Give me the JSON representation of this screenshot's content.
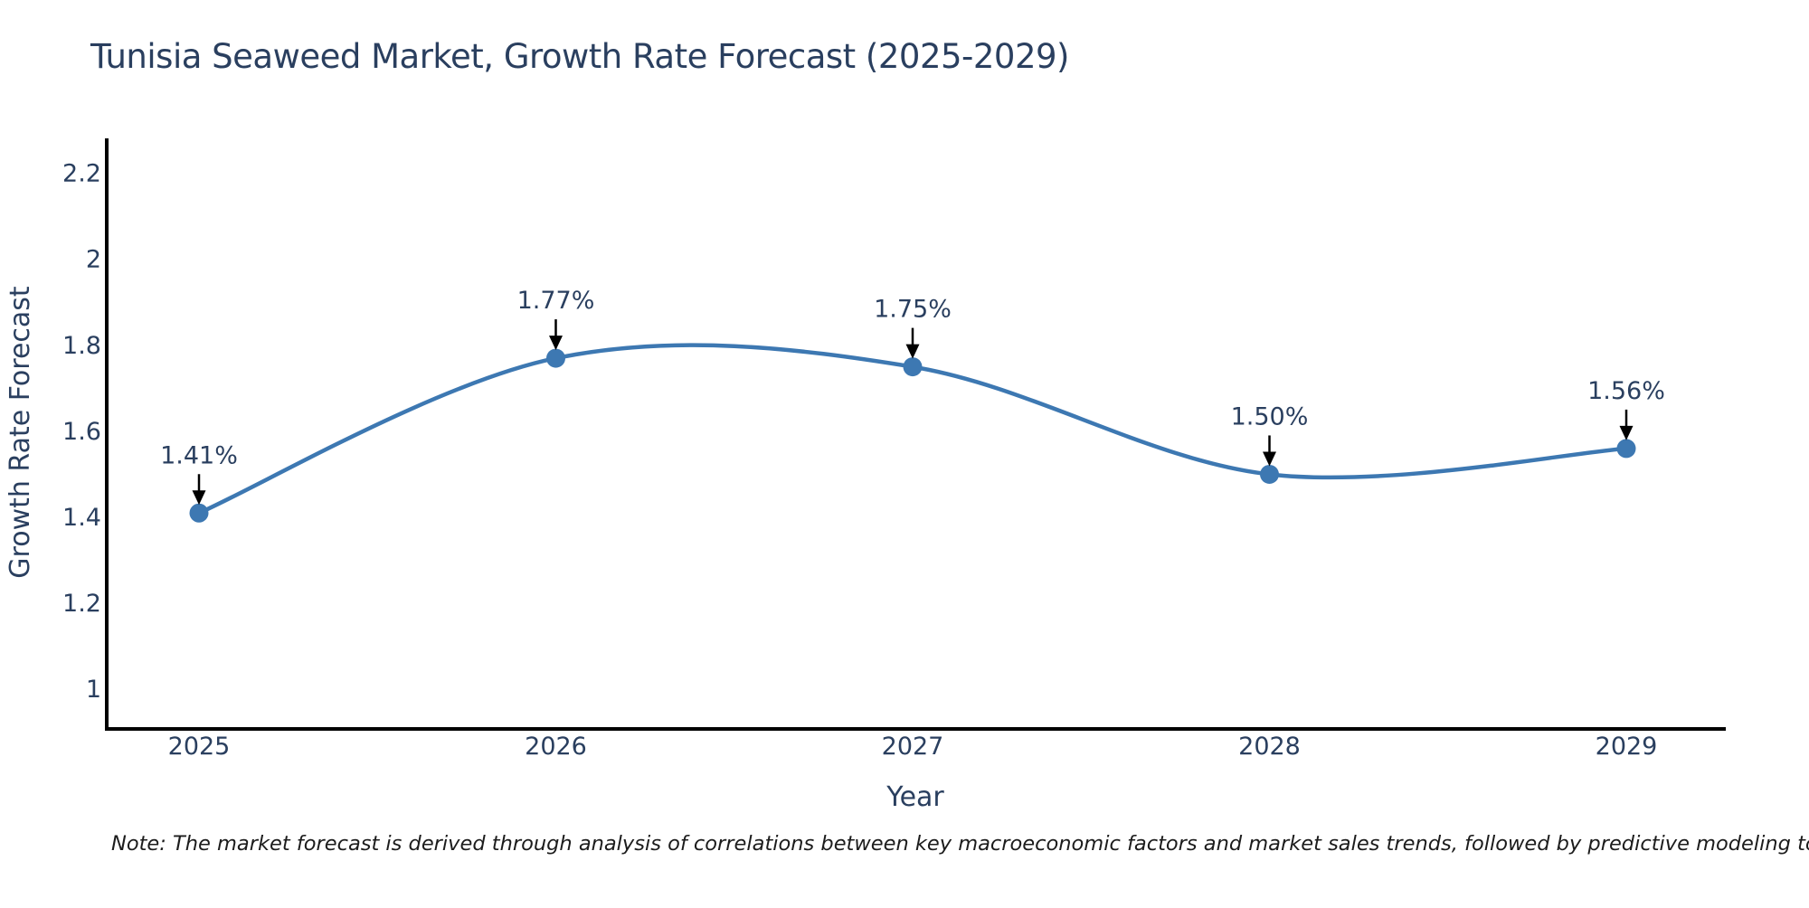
{
  "note": "Note: The market forecast is derived through analysis of correlations between key macroeconomic factors and market sales trends, followed by predictive modeling to project future sales",
  "chart_data": {
    "type": "line",
    "line_shape": "spline",
    "title": "Tunisia Seaweed Market, Growth Rate Forecast (2025-2029)",
    "xlabel": "Year",
    "ylabel": "Growth Rate Forecast",
    "x": [
      2025,
      2026,
      2027,
      2028,
      2029
    ],
    "y": [
      1.41,
      1.77,
      1.75,
      1.5,
      1.56
    ],
    "point_labels": [
      "1.41%",
      "1.77%",
      "1.75%",
      "1.50%",
      "1.56%"
    ],
    "yticks": [
      1,
      1.2,
      1.4,
      1.6,
      1.8,
      2,
      2.2
    ],
    "ylim": [
      0.91,
      2.277
    ],
    "grid": false,
    "legend": false,
    "markers": true,
    "annotation_style": "value label above point with downward black arrow",
    "colors": {
      "line": "#3d78b2",
      "marker": "#3d78b2",
      "axis": "#000000",
      "text": "#2a3f5f",
      "annotation_arrow": "#000000",
      "note_text": "#1c1c1c",
      "background": "#ffffff"
    }
  }
}
